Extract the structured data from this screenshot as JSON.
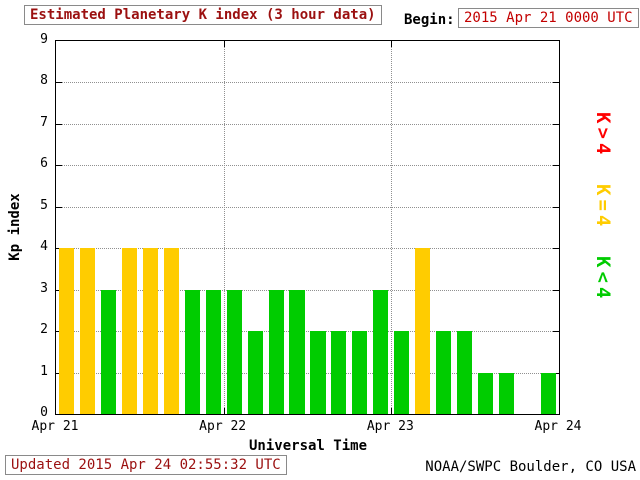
{
  "header": {
    "title": "Estimated Planetary K index (3 hour data)",
    "begin_label": "Begin:",
    "begin_value": "2015 Apr 21 0000 UTC"
  },
  "footer": {
    "updated": "Updated 2015 Apr 24 02:55:32 UTC",
    "source": "NOAA/SWPC Boulder, CO USA"
  },
  "chart_data": {
    "type": "bar",
    "title": "Estimated Planetary K index (3 hour data)",
    "xlabel": "Universal Time",
    "ylabel": "Kp index",
    "ylim": [
      0,
      9
    ],
    "y_ticks": [
      0,
      1,
      2,
      3,
      4,
      5,
      6,
      7,
      8,
      9
    ],
    "x_tick_labels": [
      "Apr 21",
      "Apr 22",
      "Apr 23",
      "Apr 24"
    ],
    "bars_per_day": 8,
    "bar_interval_hours": 3,
    "grid": true,
    "legend_position": "right",
    "days": [
      {
        "date": "Apr 21",
        "values": [
          4,
          4,
          3,
          4,
          4,
          4,
          3,
          3
        ]
      },
      {
        "date": "Apr 22",
        "values": [
          3,
          2,
          3,
          3,
          2,
          2,
          2,
          3
        ]
      },
      {
        "date": "Apr 23",
        "values": [
          2,
          4,
          2,
          2,
          1,
          1,
          0,
          1
        ]
      }
    ],
    "colors": {
      "below4": "#00cc00",
      "equal4": "#ffcc00",
      "above4": "#ff0000"
    },
    "legend": [
      {
        "label": "K>4",
        "color": "#ff0000"
      },
      {
        "label": "K=4",
        "color": "#ffcc00"
      },
      {
        "label": "K<4",
        "color": "#00cc00"
      }
    ]
  }
}
